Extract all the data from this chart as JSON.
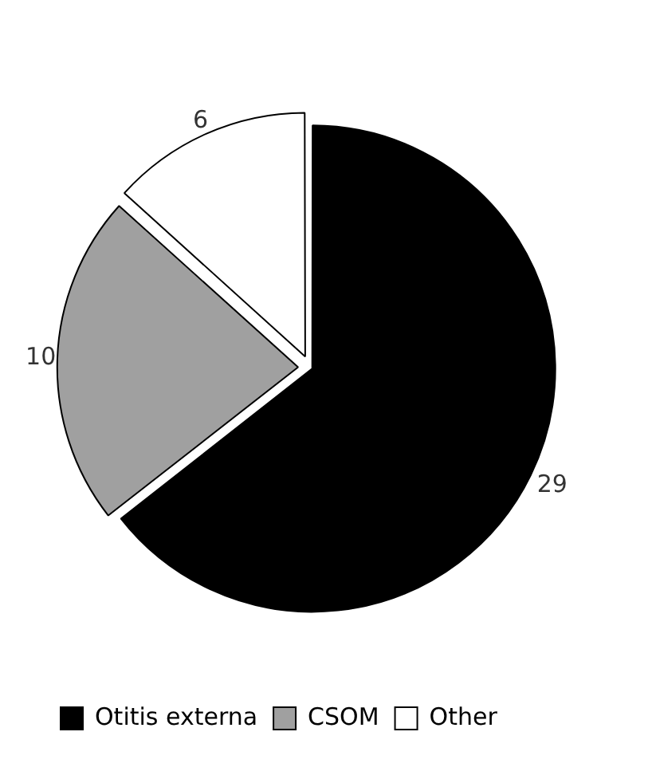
{
  "chart_data": {
    "type": "pie",
    "categories": [
      "Otitis externa",
      "CSOM",
      "Other"
    ],
    "values": [
      29,
      10,
      6
    ],
    "colors": [
      "#000000",
      "#a0a0a0",
      "#ffffff"
    ],
    "data_labels": true,
    "legend": "bottom left"
  }
}
